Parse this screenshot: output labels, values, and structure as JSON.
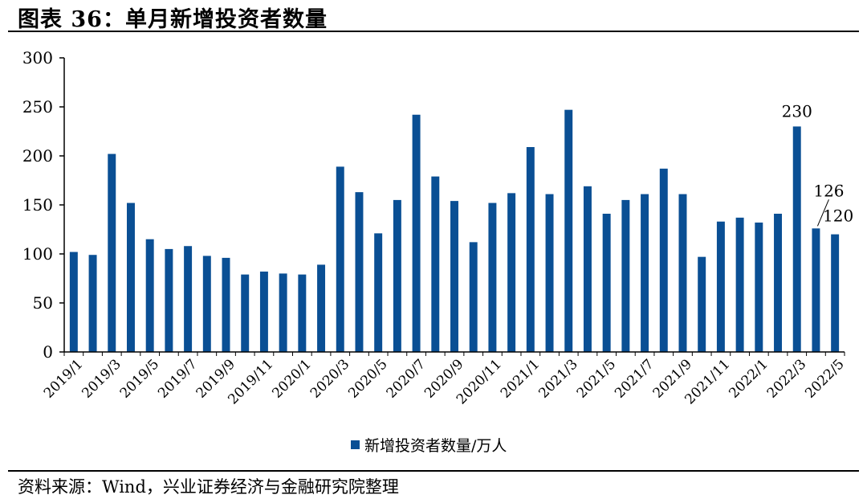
{
  "title": "图表 36：单月新增投资者数量",
  "source": "资料来源：Wind，兴业证券经济与金融研究院整理",
  "colors": {
    "bar": "#0a4f94"
  },
  "chart_data": {
    "type": "bar",
    "categories": [
      "2019/1",
      "2019/2",
      "2019/3",
      "2019/4",
      "2019/5",
      "2019/6",
      "2019/7",
      "2019/8",
      "2019/9",
      "2019/10",
      "2019/11",
      "2019/12",
      "2020/1",
      "2020/2",
      "2020/3",
      "2020/4",
      "2020/5",
      "2020/6",
      "2020/7",
      "2020/8",
      "2020/9",
      "2020/10",
      "2020/11",
      "2020/12",
      "2021/1",
      "2021/2",
      "2021/3",
      "2021/4",
      "2021/5",
      "2021/6",
      "2021/7",
      "2021/8",
      "2021/9",
      "2021/10",
      "2021/11",
      "2021/12",
      "2022/1",
      "2022/2",
      "2022/3",
      "2022/4",
      "2022/5"
    ],
    "tick_labels": [
      "2019/1",
      "2019/3",
      "2019/5",
      "2019/7",
      "2019/9",
      "2019/11",
      "2020/1",
      "2020/3",
      "2020/5",
      "2020/7",
      "2020/9",
      "2020/11",
      "2021/1",
      "2021/3",
      "2021/5",
      "2021/7",
      "2021/9",
      "2021/11",
      "2022/1",
      "2022/3",
      "2022/5"
    ],
    "series": [
      {
        "name": "新增投资者数量/万人",
        "values": [
          102,
          99,
          202,
          152,
          115,
          105,
          108,
          98,
          96,
          79,
          82,
          80,
          79,
          89,
          189,
          163,
          121,
          155,
          242,
          179,
          154,
          112,
          152,
          162,
          209,
          161,
          247,
          169,
          141,
          155,
          161,
          187,
          161,
          97,
          133,
          137,
          132,
          141,
          230,
          126,
          120
        ]
      }
    ],
    "annotations": [
      {
        "category": "2022/3",
        "text": "230"
      },
      {
        "category": "2022/4",
        "text": "126"
      },
      {
        "category": "2022/5",
        "text": "120"
      }
    ],
    "ylim": [
      0,
      300
    ],
    "yticks": [
      0,
      50,
      100,
      150,
      200,
      250,
      300
    ],
    "grid": false,
    "legend": "bottom-center"
  }
}
